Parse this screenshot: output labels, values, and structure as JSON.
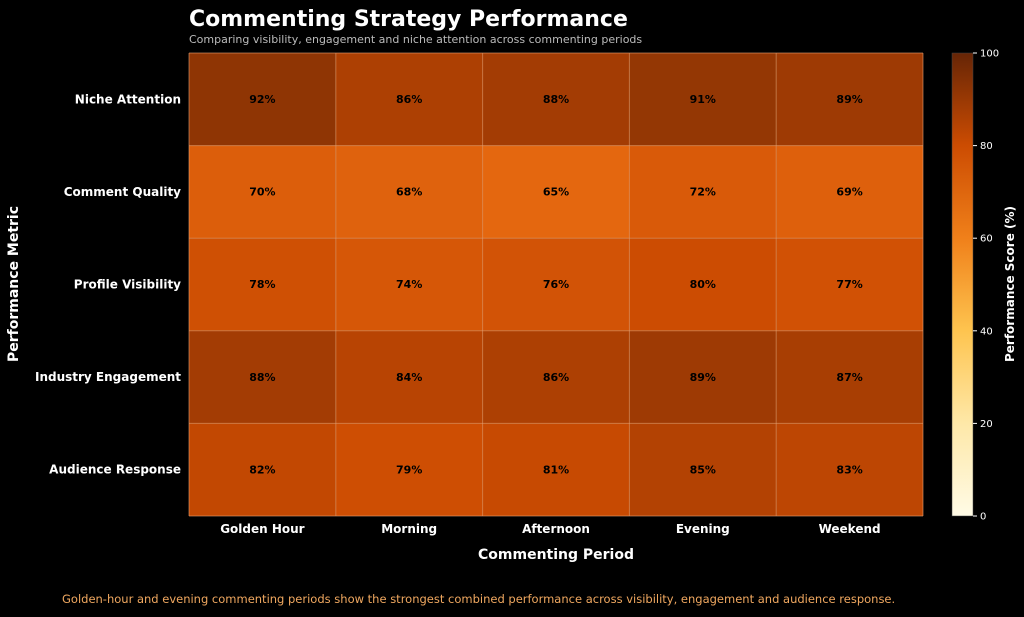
{
  "chart_data": {
    "type": "heatmap",
    "title": "Commenting Strategy Performance",
    "subtitle": "Comparing visibility, engagement and niche attention across commenting periods",
    "xlabel": "Commenting Period",
    "ylabel": "Performance Metric",
    "x_categories": [
      "Golden Hour",
      "Morning",
      "Afternoon",
      "Evening",
      "Weekend"
    ],
    "y_categories": [
      "Niche Attention",
      "Comment Quality",
      "Profile Visibility",
      "Industry Engagement",
      "Audience Response"
    ],
    "values": [
      [
        92,
        86,
        88,
        91,
        89
      ],
      [
        70,
        68,
        65,
        72,
        69
      ],
      [
        78,
        74,
        76,
        80,
        77
      ],
      [
        88,
        84,
        86,
        89,
        87
      ],
      [
        82,
        79,
        81,
        85,
        83
      ]
    ],
    "value_suffix": "%",
    "colorbar": {
      "label": "Performance Score (%)",
      "range": [
        0,
        100
      ],
      "ticks": [
        0,
        20,
        40,
        60,
        80,
        100
      ],
      "colormap": "YlOrBr"
    },
    "footnote": "Golden-hour and evening commenting periods show the strongest combined performance across visibility, engagement and audience response.",
    "colors": {
      "background": "#000000",
      "text": "#ffffff",
      "subtitle": "#bbbbbb",
      "footnote": "#f0a860",
      "grid": "#e8a070"
    }
  }
}
